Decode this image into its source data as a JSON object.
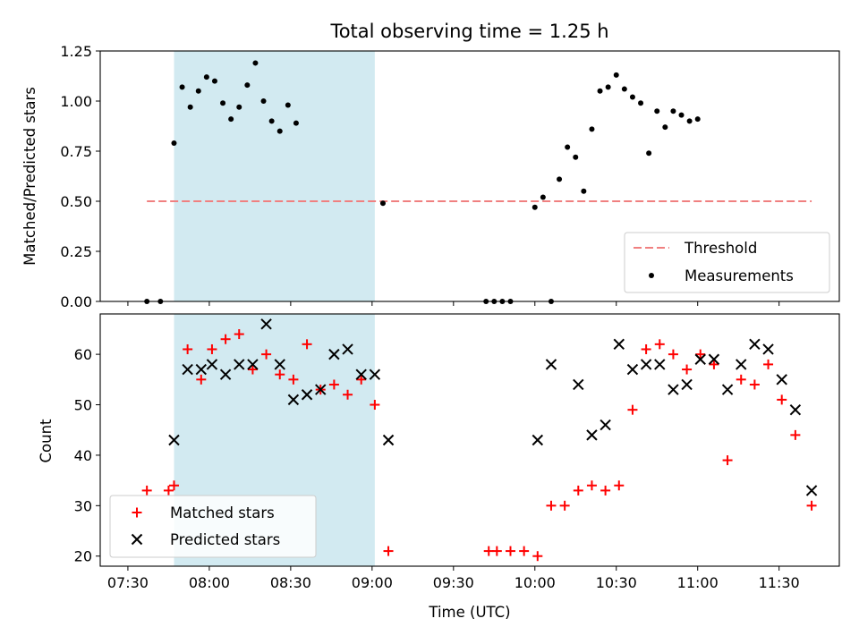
{
  "chart_data": [
    {
      "type": "scatter",
      "title": "Total observing time = 1.25 h",
      "xlabel": "",
      "ylabel": "Matched/Predicted stars",
      "ylim": [
        0,
        1.25
      ],
      "yticks": [
        "0.00",
        "0.25",
        "0.50",
        "0.75",
        "1.00",
        "1.25"
      ],
      "xlim_hours": [
        7.33,
        11.87
      ],
      "shaded_span": {
        "start": "07:47",
        "end": "09:01",
        "color": "#add8e6"
      },
      "threshold": {
        "name": "Threshold",
        "y": 0.5,
        "x_start": "07:37",
        "x_end": "11:42",
        "color": "#f08080"
      },
      "series": [
        {
          "name": "Measurements",
          "color": "#000000",
          "points": [
            [
              "07:37",
              0.0
            ],
            [
              "07:42",
              0.0
            ],
            [
              "07:47",
              0.79
            ],
            [
              "07:50",
              1.07
            ],
            [
              "07:53",
              0.97
            ],
            [
              "07:56",
              1.05
            ],
            [
              "07:59",
              1.12
            ],
            [
              "08:02",
              1.1
            ],
            [
              "08:05",
              0.99
            ],
            [
              "08:08",
              0.91
            ],
            [
              "08:11",
              0.97
            ],
            [
              "08:14",
              1.08
            ],
            [
              "08:17",
              1.19
            ],
            [
              "08:20",
              1.0
            ],
            [
              "08:23",
              0.9
            ],
            [
              "08:26",
              0.85
            ],
            [
              "08:29",
              0.98
            ],
            [
              "08:32",
              0.89
            ],
            [
              "09:04",
              0.49
            ],
            [
              "09:42",
              0.0
            ],
            [
              "09:45",
              0.0
            ],
            [
              "09:48",
              0.0
            ],
            [
              "09:51",
              0.0
            ],
            [
              "10:00",
              0.47
            ],
            [
              "10:03",
              0.52
            ],
            [
              "10:06",
              0.0
            ],
            [
              "10:09",
              0.61
            ],
            [
              "10:12",
              0.77
            ],
            [
              "10:15",
              0.72
            ],
            [
              "10:18",
              0.55
            ],
            [
              "10:21",
              0.86
            ],
            [
              "10:24",
              1.05
            ],
            [
              "10:27",
              1.07
            ],
            [
              "10:30",
              1.13
            ],
            [
              "10:33",
              1.06
            ],
            [
              "10:36",
              1.02
            ],
            [
              "10:39",
              0.99
            ],
            [
              "10:42",
              0.74
            ],
            [
              "10:45",
              0.95
            ],
            [
              "10:48",
              0.87
            ],
            [
              "10:51",
              0.95
            ],
            [
              "10:54",
              0.93
            ],
            [
              "10:57",
              0.9
            ],
            [
              "11:00",
              0.91
            ]
          ]
        }
      ],
      "legend": {
        "placement": "lower right",
        "entries": [
          {
            "label": "Threshold",
            "marker": "dashed-line"
          },
          {
            "label": "Measurements",
            "marker": "dot"
          }
        ]
      }
    },
    {
      "type": "scatter",
      "title": "",
      "xlabel": "Time (UTC)",
      "ylabel": "Count",
      "ylim": [
        18,
        68
      ],
      "yticks": [
        "20",
        "30",
        "40",
        "50",
        "60"
      ],
      "xticks": [
        "07:30",
        "08:00",
        "08:30",
        "09:00",
        "09:30",
        "10:00",
        "10:30",
        "11:00",
        "11:30"
      ],
      "shaded_span": {
        "start": "07:47",
        "end": "09:01",
        "color": "#add8e6"
      },
      "series": [
        {
          "name": "Matched stars",
          "color": "#ff0000",
          "marker": "plus",
          "points": [
            [
              "07:37",
              33
            ],
            [
              "07:45",
              33
            ],
            [
              "07:47",
              34
            ],
            [
              "07:52",
              61
            ],
            [
              "07:57",
              55
            ],
            [
              "08:01",
              61
            ],
            [
              "08:06",
              63
            ],
            [
              "08:11",
              64
            ],
            [
              "08:16",
              57
            ],
            [
              "08:21",
              60
            ],
            [
              "08:26",
              56
            ],
            [
              "08:31",
              55
            ],
            [
              "08:36",
              62
            ],
            [
              "08:41",
              53
            ],
            [
              "08:46",
              54
            ],
            [
              "08:51",
              52
            ],
            [
              "08:56",
              55
            ],
            [
              "09:01",
              50
            ],
            [
              "09:06",
              21
            ],
            [
              "09:43",
              21
            ],
            [
              "09:46",
              21
            ],
            [
              "09:51",
              21
            ],
            [
              "09:56",
              21
            ],
            [
              "10:01",
              20
            ],
            [
              "10:06",
              30
            ],
            [
              "10:11",
              30
            ],
            [
              "10:16",
              33
            ],
            [
              "10:21",
              34
            ],
            [
              "10:26",
              33
            ],
            [
              "10:31",
              34
            ],
            [
              "10:36",
              49
            ],
            [
              "10:41",
              61
            ],
            [
              "10:46",
              62
            ],
            [
              "10:51",
              60
            ],
            [
              "10:56",
              57
            ],
            [
              "11:01",
              60
            ],
            [
              "11:06",
              58
            ],
            [
              "11:11",
              39
            ],
            [
              "11:16",
              55
            ],
            [
              "11:21",
              54
            ],
            [
              "11:26",
              58
            ],
            [
              "11:31",
              51
            ],
            [
              "11:36",
              44
            ],
            [
              "11:42",
              30
            ]
          ]
        },
        {
          "name": "Predicted stars",
          "color": "#000000",
          "marker": "x",
          "points": [
            [
              "07:47",
              43
            ],
            [
              "07:52",
              57
            ],
            [
              "07:57",
              57
            ],
            [
              "08:01",
              58
            ],
            [
              "08:06",
              56
            ],
            [
              "08:11",
              58
            ],
            [
              "08:16",
              58
            ],
            [
              "08:21",
              66
            ],
            [
              "08:26",
              58
            ],
            [
              "08:31",
              51
            ],
            [
              "08:36",
              52
            ],
            [
              "08:41",
              53
            ],
            [
              "08:46",
              60
            ],
            [
              "08:51",
              61
            ],
            [
              "08:56",
              56
            ],
            [
              "09:01",
              56
            ],
            [
              "09:06",
              43
            ],
            [
              "10:01",
              43
            ],
            [
              "10:06",
              58
            ],
            [
              "10:16",
              54
            ],
            [
              "10:21",
              44
            ],
            [
              "10:26",
              46
            ],
            [
              "10:31",
              62
            ],
            [
              "10:36",
              57
            ],
            [
              "10:41",
              58
            ],
            [
              "10:46",
              58
            ],
            [
              "10:51",
              53
            ],
            [
              "10:56",
              54
            ],
            [
              "11:01",
              59
            ],
            [
              "11:06",
              59
            ],
            [
              "11:11",
              53
            ],
            [
              "11:16",
              58
            ],
            [
              "11:21",
              62
            ],
            [
              "11:26",
              61
            ],
            [
              "11:31",
              55
            ],
            [
              "11:36",
              49
            ],
            [
              "11:42",
              33
            ]
          ]
        }
      ],
      "legend": {
        "placement": "lower left",
        "entries": [
          {
            "label": "Matched stars",
            "marker": "plus"
          },
          {
            "label": "Predicted stars",
            "marker": "x"
          }
        ]
      }
    }
  ]
}
